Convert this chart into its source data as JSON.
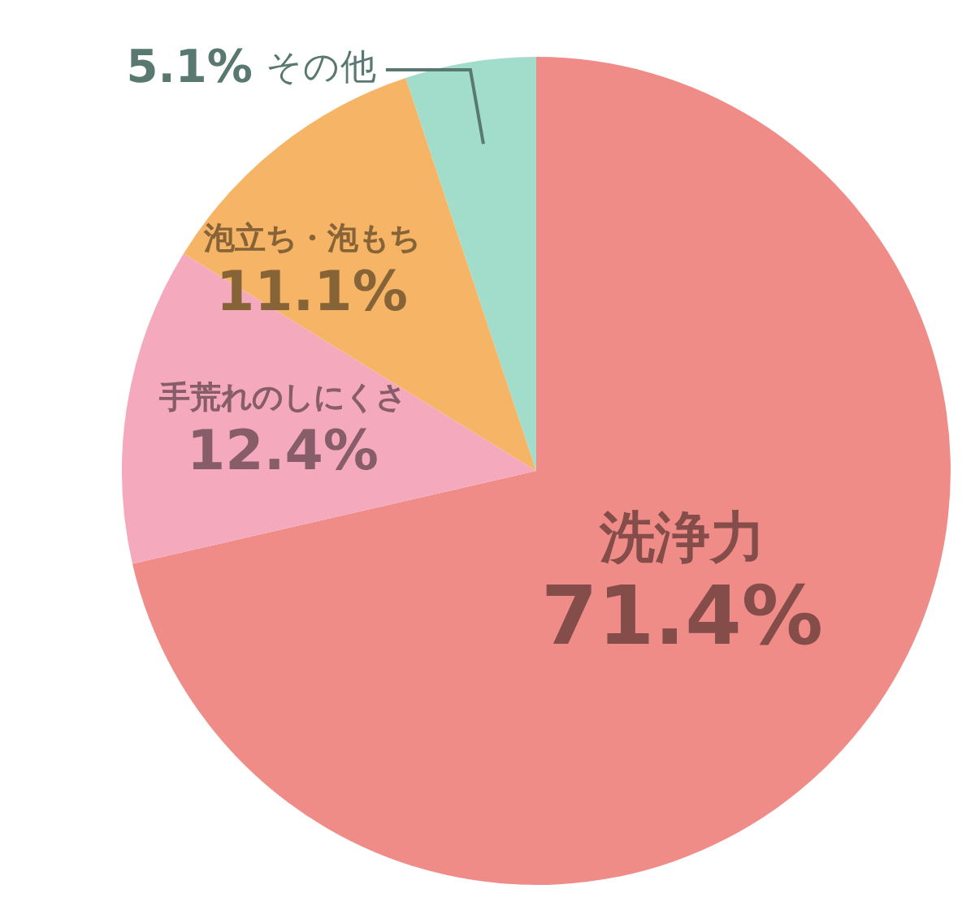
{
  "chart_data": {
    "type": "pie",
    "categories": [
      "洗浄力",
      "手荒れのしにくさ",
      "泡立ち・泡もち",
      "その他"
    ],
    "values": [
      71.4,
      12.4,
      11.1,
      5.1
    ],
    "colors": [
      "#f08c87",
      "#f4a9bd",
      "#f6b566",
      "#a2dccb"
    ],
    "value_labels": [
      "71.4%",
      "12.4%",
      "11.1%",
      "5.1%"
    ],
    "legend": false
  }
}
